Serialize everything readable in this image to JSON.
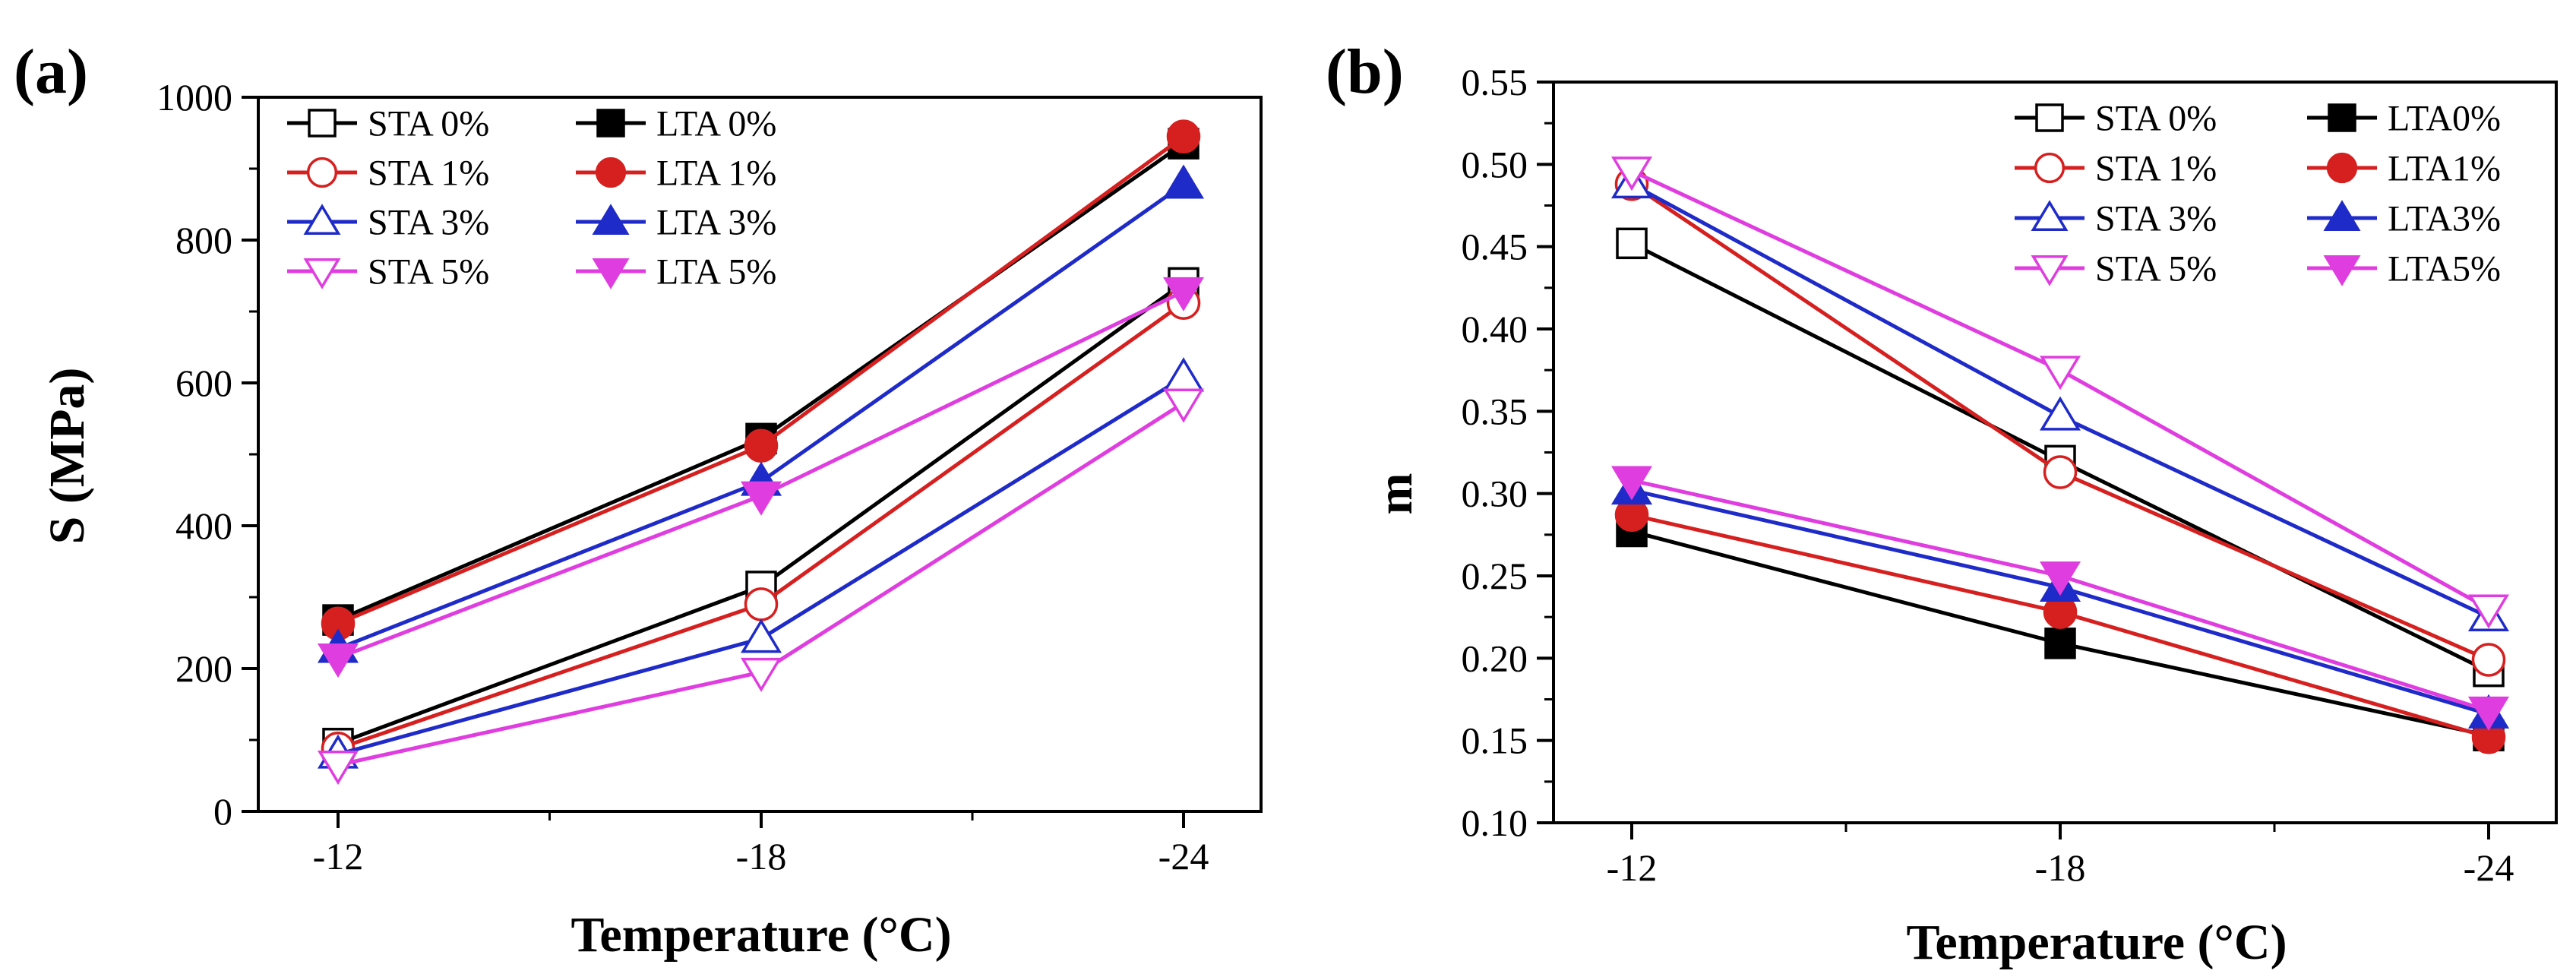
{
  "figure": {
    "panels": [
      {
        "label": "(a)",
        "xlabel": "Temperature (°C)",
        "ylabel": "S (MPa)"
      },
      {
        "label": "(b)",
        "xlabel": "Temperature (°C)",
        "ylabel": "m"
      }
    ]
  },
  "chart_data": [
    {
      "type": "line",
      "title": "",
      "xlabel": "Temperature (°C)",
      "ylabel": "S (MPa)",
      "categories": [
        "-12",
        "-18",
        "-24"
      ],
      "ylim": [
        0,
        1000
      ],
      "yticks": [
        0,
        200,
        400,
        600,
        800,
        1000
      ],
      "ytick_labels": [
        "0",
        "200",
        "400",
        "600",
        "800",
        "1000"
      ],
      "grid": false,
      "legend_position": "top-left",
      "series": [
        {
          "name": "STA 0%",
          "color": "#000000",
          "marker": "square",
          "filled": false,
          "values": [
            95,
            315,
            740
          ]
        },
        {
          "name": "LTA 0%",
          "color": "#000000",
          "marker": "square",
          "filled": true,
          "values": [
            268,
            522,
            935
          ]
        },
        {
          "name": "STA 1%",
          "color": "#d62020",
          "marker": "circle",
          "filled": false,
          "values": [
            88,
            290,
            712
          ]
        },
        {
          "name": "LTA 1%",
          "color": "#d62020",
          "marker": "circle",
          "filled": true,
          "values": [
            263,
            512,
            945
          ]
        },
        {
          "name": "STA 3%",
          "color": "#1f2bc8",
          "marker": "triangle-up",
          "filled": false,
          "values": [
            80,
            242,
            608
          ]
        },
        {
          "name": "LTA 3%",
          "color": "#1f2bc8",
          "marker": "triangle-up",
          "filled": true,
          "values": [
            228,
            462,
            878
          ]
        },
        {
          "name": "STA 5%",
          "color": "#e03de0",
          "marker": "triangle-down",
          "filled": false,
          "values": [
            65,
            195,
            572
          ]
        },
        {
          "name": "LTA 5%",
          "color": "#e03de0",
          "marker": "triangle-down",
          "filled": true,
          "values": [
            215,
            442,
            728
          ]
        }
      ]
    },
    {
      "type": "line",
      "title": "",
      "xlabel": "Temperature (°C)",
      "ylabel": "m",
      "categories": [
        "-12",
        "-18",
        "-24"
      ],
      "ylim": [
        0.1,
        0.55
      ],
      "yticks": [
        0.1,
        0.15,
        0.2,
        0.25,
        0.3,
        0.35,
        0.4,
        0.45,
        0.5,
        0.55
      ],
      "ytick_labels": [
        "0.10",
        "0.15",
        "0.20",
        "0.25",
        "0.30",
        "0.35",
        "0.40",
        "0.45",
        "0.50",
        "0.55"
      ],
      "grid": false,
      "legend_position": "top-right",
      "series": [
        {
          "name": "STA 0%",
          "color": "#000000",
          "marker": "square",
          "filled": false,
          "values": [
            0.452,
            0.32,
            0.192
          ]
        },
        {
          "name": "LTA0%",
          "color": "#000000",
          "marker": "square",
          "filled": true,
          "values": [
            0.277,
            0.209,
            0.153
          ]
        },
        {
          "name": "STA 1%",
          "color": "#d62020",
          "marker": "circle",
          "filled": false,
          "values": [
            0.488,
            0.313,
            0.199
          ]
        },
        {
          "name": "LTA1%",
          "color": "#d62020",
          "marker": "circle",
          "filled": true,
          "values": [
            0.287,
            0.228,
            0.152
          ]
        },
        {
          "name": "STA 3%",
          "color": "#1f2bc8",
          "marker": "triangle-up",
          "filled": false,
          "values": [
            0.488,
            0.347,
            0.225
          ]
        },
        {
          "name": "LTA3%",
          "color": "#1f2bc8",
          "marker": "triangle-up",
          "filled": true,
          "values": [
            0.302,
            0.243,
            0.166
          ]
        },
        {
          "name": "STA 5%",
          "color": "#e03de0",
          "marker": "triangle-down",
          "filled": false,
          "values": [
            0.496,
            0.375,
            0.23
          ]
        },
        {
          "name": "LTA5%",
          "color": "#e03de0",
          "marker": "triangle-down",
          "filled": true,
          "values": [
            0.308,
            0.25,
            0.168
          ]
        }
      ]
    }
  ]
}
